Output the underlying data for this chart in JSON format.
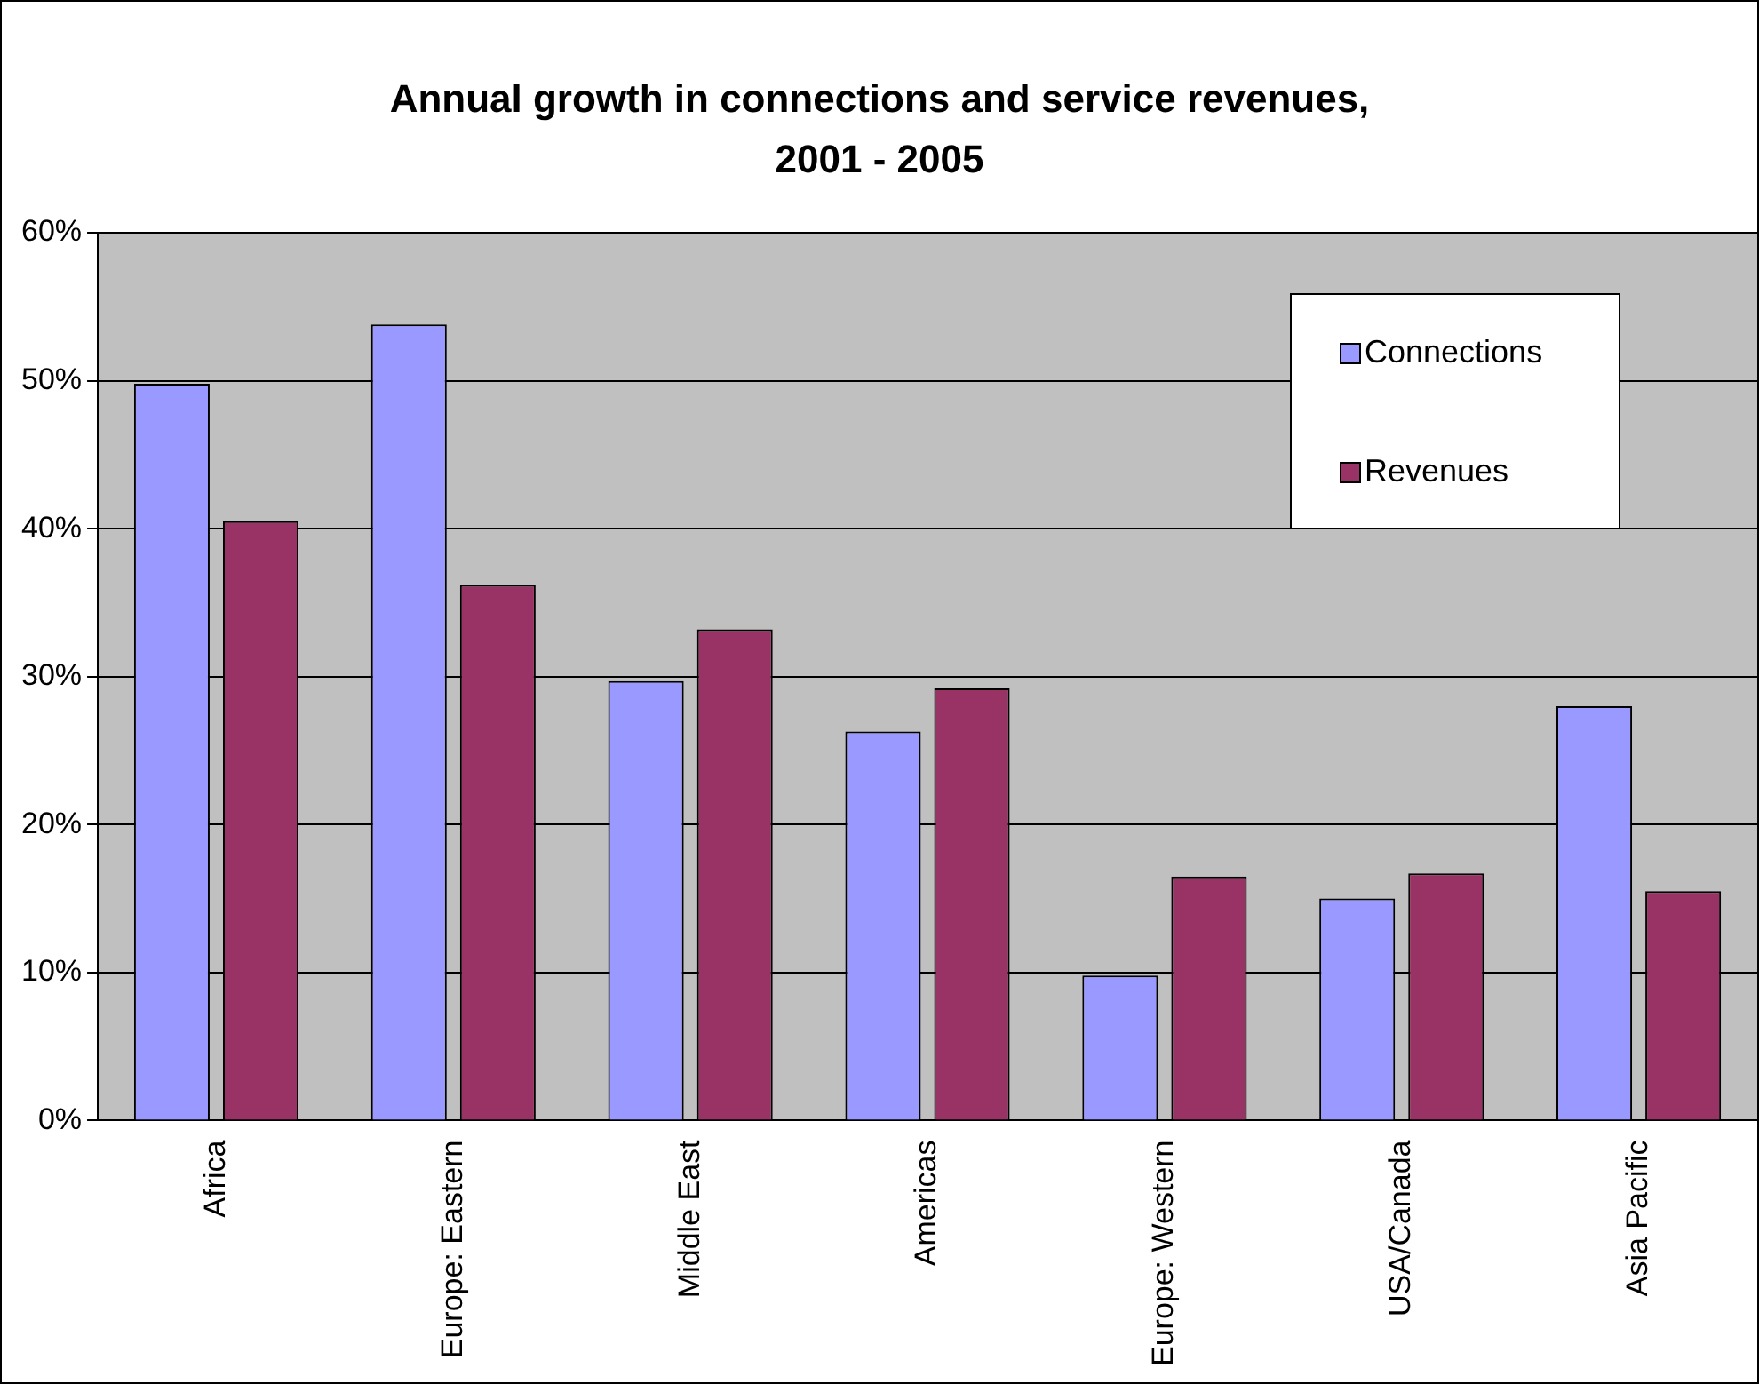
{
  "chart_data": {
    "type": "bar",
    "title": "Annual growth in connections and service revenues, 2001 - 2005",
    "categories": [
      "Africa",
      "Europe: Eastern",
      "Middle East",
      "Americas",
      "Europe: Western",
      "USA/Canada",
      "Asia Pacific"
    ],
    "series": [
      {
        "name": "Connections",
        "color": "#9999ff",
        "values": [
          49.8,
          53.8,
          29.7,
          26.3,
          9.8,
          15,
          28
        ]
      },
      {
        "name": "Revenues",
        "color": "#993366",
        "values": [
          40.5,
          36.2,
          33.2,
          29.2,
          16.5,
          16.7,
          15.5
        ]
      }
    ],
    "ylim": [
      0,
      60
    ],
    "yticks": [
      {
        "value": 0,
        "label": "0%"
      },
      {
        "value": 10,
        "label": "10%"
      },
      {
        "value": 20,
        "label": "20%"
      },
      {
        "value": 30,
        "label": "30%"
      },
      {
        "value": 40,
        "label": "40%"
      },
      {
        "value": 50,
        "label": "50%"
      },
      {
        "value": 60,
        "label": "60%"
      }
    ],
    "grid": "y",
    "legend": "top right"
  }
}
